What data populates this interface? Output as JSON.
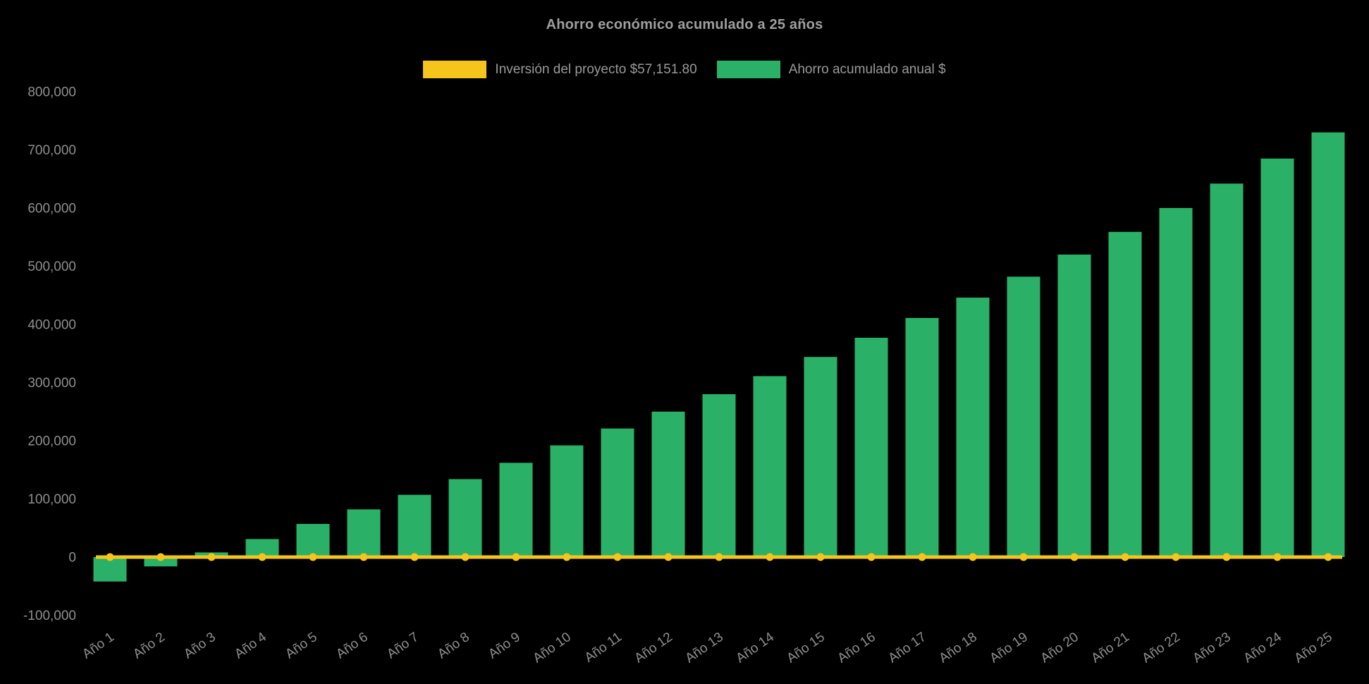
{
  "chart_data": {
    "type": "bar",
    "title": "Ahorro económico acumulado a 25 años",
    "background": "#000000",
    "text_color": "#8F8F8F",
    "title_color": "#9E9E9E",
    "legend_text_color": "#9A9A9A",
    "legend_position": "top",
    "grid": false,
    "categories": [
      "Año 1",
      "Año 2",
      "Año 3",
      "Año 4",
      "Año 5",
      "Año 6",
      "Año 7",
      "Año 8",
      "Año 9",
      "Año 10",
      "Año 11",
      "Año 12",
      "Año 13",
      "Año 14",
      "Año 15",
      "Año 16",
      "Año 17",
      "Año 18",
      "Año 19",
      "Año 20",
      "Año 21",
      "Año 22",
      "Año 23",
      "Año 24",
      "Año 25"
    ],
    "series": [
      {
        "name": "Inversión del proyecto $57,151.80",
        "type": "line",
        "color": "#F5C51B",
        "values": [
          0,
          0,
          0,
          0,
          0,
          0,
          0,
          0,
          0,
          0,
          0,
          0,
          0,
          0,
          0,
          0,
          0,
          0,
          0,
          0,
          0,
          0,
          0,
          0,
          0
        ]
      },
      {
        "name": "Ahorro acumulado anual $",
        "type": "bar",
        "color": "#2AB167",
        "values": [
          -42000,
          -16000,
          8000,
          31000,
          57000,
          82000,
          107000,
          134000,
          162000,
          192000,
          221000,
          250000,
          280000,
          311000,
          344000,
          377000,
          411000,
          446000,
          482000,
          520000,
          559000,
          600000,
          642000,
          685000,
          730000
        ]
      }
    ],
    "ylim": [
      -100000,
      800000
    ],
    "y_ticks": [
      {
        "value": 800000,
        "label": "800,000"
      },
      {
        "value": 700000,
        "label": "700,000"
      },
      {
        "value": 600000,
        "label": "600,000"
      },
      {
        "value": 500000,
        "label": "500,000"
      },
      {
        "value": 400000,
        "label": "400,000"
      },
      {
        "value": 300000,
        "label": "300,000"
      },
      {
        "value": 200000,
        "label": "200,000"
      },
      {
        "value": 100000,
        "label": "100,000"
      },
      {
        "value": 0,
        "label": "0"
      },
      {
        "value": -100000,
        "label": "-100,000"
      }
    ]
  }
}
